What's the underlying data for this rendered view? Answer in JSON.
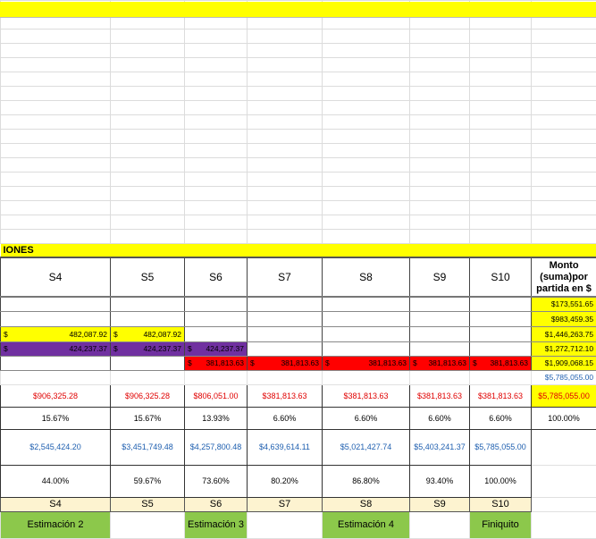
{
  "title": "IONES",
  "headers": [
    "S4",
    "S5",
    "S6",
    "S7",
    "S8",
    "S9",
    "S10"
  ],
  "monto_header": "Monto (suma)por partida en $",
  "currency": "$",
  "rows": {
    "yellow": "482,087.92",
    "purple": "424,237.37",
    "red": "381,813.63"
  },
  "totals_by_partida": [
    "$173,551.65",
    "$983,459.35",
    "$1,446,263.75",
    "$1,272,712.10",
    "$1,909,068.15"
  ],
  "grand_total": "$5,785,055.00",
  "period_amounts": [
    "$906,325.28",
    "$906,325.28",
    "$806,051.00",
    "$381,813.63",
    "$381,813.63",
    "$381,813.63",
    "$381,813.63",
    "$5,785,055.00"
  ],
  "period_pct": [
    "15.67%",
    "15.67%",
    "13.93%",
    "6.60%",
    "6.60%",
    "6.60%",
    "6.60%",
    "100.00%"
  ],
  "cumulative_amounts": [
    "$2,545,424.20",
    "$3,451,749.48",
    "$4,257,800.48",
    "$4,639,614.11",
    "$5,021,427.74",
    "$5,403,241.37",
    "$5,785,055.00"
  ],
  "cumulative_pct": [
    "44.00%",
    "59.67%",
    "73.60%",
    "80.20%",
    "86.80%",
    "93.40%",
    "100.00%"
  ],
  "labels": [
    "S4",
    "S5",
    "S6",
    "S7",
    "S8",
    "S9",
    "S10"
  ],
  "estimations": [
    "Estimación 2",
    "",
    "Estimación 3",
    "",
    "Estimación 4",
    "",
    "Finiquito"
  ],
  "colors": {
    "yellow": "#ffff00",
    "purple": "#7030a0",
    "red": "#ff0000",
    "green": "#8cc84b"
  }
}
